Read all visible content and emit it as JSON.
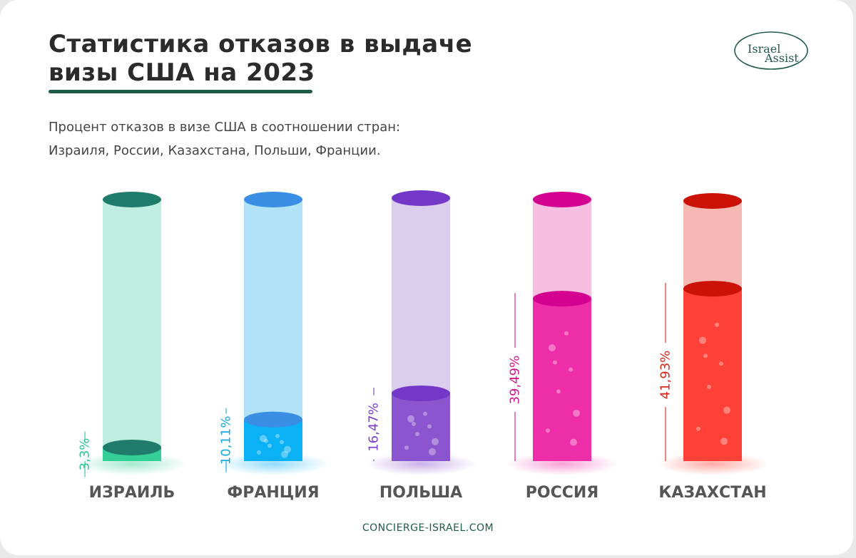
{
  "header": {
    "title_line1": "Статистика отказов в выдаче",
    "title_line2": "визы США на 2023",
    "subtitle_line1": "Процент отказов в визе США в соотношении стран:",
    "subtitle_line2": "Израиля, России, Казахстана, Польши, Франции."
  },
  "logo": {
    "text_top": "Israel",
    "text_bottom": "Assist"
  },
  "footer": {
    "site": "CONCIERGE-ISRAEL.COM"
  },
  "chart_data": {
    "type": "bar",
    "title": "Статистика отказов в выдаче визы США на 2023",
    "categories": [
      "ИЗРАИЛЬ",
      "ФРАНЦИЯ",
      "ПОЛЬША",
      "РОССИЯ",
      "КАЗАХСТАН"
    ],
    "values": [
      3.3,
      10.11,
      16.47,
      39.49,
      41.93
    ],
    "value_labels": [
      "3,3%",
      "10,11%",
      "16,47%",
      "39,49%",
      "41,93%"
    ],
    "unit": "%",
    "colors": {
      "fill": [
        "#34cf98",
        "#0ab1f5",
        "#8a55ce",
        "#ee2ea8",
        "#fd4138"
      ],
      "empty": [
        "#bdeedf",
        "#b1e2f8",
        "#dbcdee",
        "#f8bee1",
        "#f6b8b3"
      ],
      "cap": [
        "#1f7c6b",
        "#3a8ee4",
        "#7338c8",
        "#d4008f",
        "#cb1207"
      ],
      "label": [
        "#2fc596",
        "#19a8e6",
        "#7c3fd0",
        "#d5168f",
        "#d42a1c"
      ],
      "category_text": "#555555"
    },
    "grid": false,
    "legend": "none"
  }
}
